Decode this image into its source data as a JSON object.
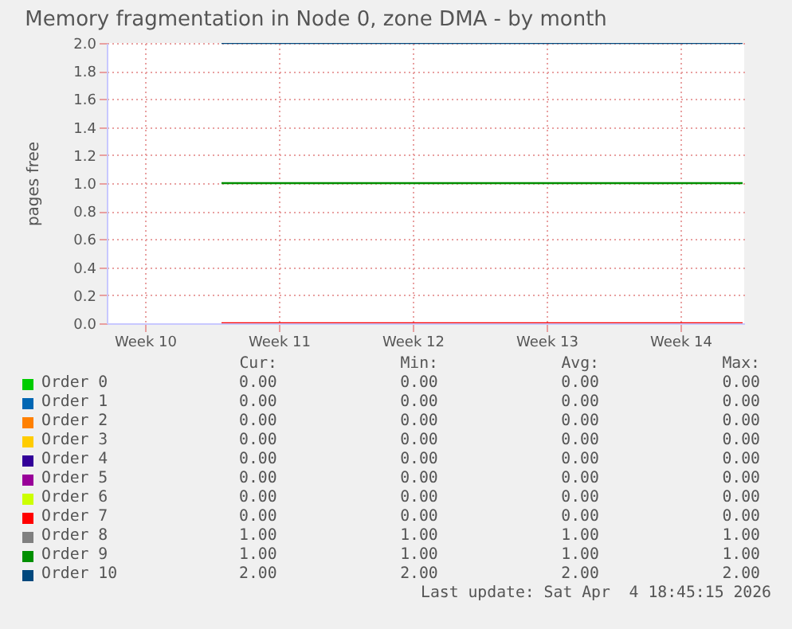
{
  "chart_data": {
    "type": "line",
    "title": "Memory fragmentation in Node 0, zone DMA - by month",
    "ylabel": "pages free",
    "xlim": [
      "2026-03-03T12:00",
      "2026-04-05T20:00"
    ],
    "xticks": [
      {
        "value": "2026-03-05T12:00",
        "label": "Week 10"
      },
      {
        "value": "2026-03-12T12:00",
        "label": "Week 11"
      },
      {
        "value": "2026-03-19T12:00",
        "label": "Week 12"
      },
      {
        "value": "2026-03-26T12:00",
        "label": "Week 13"
      },
      {
        "value": "2026-04-02T12:00",
        "label": "Week 14"
      }
    ],
    "ylim": [
      0,
      2
    ],
    "yticks": [
      {
        "value": 0,
        "label": "0.0"
      },
      {
        "value": 0.2,
        "label": "0.2"
      },
      {
        "value": 0.4,
        "label": "0.4"
      },
      {
        "value": 0.6,
        "label": "0.6"
      },
      {
        "value": 0.8,
        "label": "0.8"
      },
      {
        "value": 1,
        "label": "1.0"
      },
      {
        "value": 1.2,
        "label": "1.2"
      },
      {
        "value": 1.4,
        "label": "1.4"
      },
      {
        "value": 1.6,
        "label": "1.6"
      },
      {
        "value": 1.8,
        "label": "1.8"
      },
      {
        "value": 2,
        "label": "2.0"
      }
    ],
    "grid": true,
    "legend": "bottom",
    "marker": "none",
    "x": [
      "2026-03-09T12:00",
      "2026-04-05T18:00"
    ],
    "series": [
      {
        "name": "Order 0",
        "color": "#00cc00",
        "values": [
          null,
          null
        ]
      },
      {
        "name": "Order 1",
        "color": "#0066b3",
        "values": [
          null,
          null
        ]
      },
      {
        "name": "Order 2",
        "color": "#ff8000",
        "values": [
          null,
          null
        ]
      },
      {
        "name": "Order 3",
        "color": "#ffcc00",
        "values": [
          null,
          null
        ]
      },
      {
        "name": "Order 4",
        "color": "#330099",
        "values": [
          null,
          null
        ]
      },
      {
        "name": "Order 5",
        "color": "#990099",
        "values": [
          null,
          null
        ]
      },
      {
        "name": "Order 6",
        "color": "#ccff00",
        "values": [
          null,
          null
        ]
      },
      {
        "name": "Order 7",
        "color": "#ff0000",
        "values": [
          0,
          0
        ]
      },
      {
        "name": "Order 8",
        "color": "#808080",
        "values": [
          null,
          null
        ]
      },
      {
        "name": "Order 9",
        "color": "#008f00",
        "values": [
          1,
          1
        ]
      },
      {
        "name": "Order 10",
        "color": "#00487d",
        "values": [
          2,
          2
        ]
      }
    ],
    "annotations": [
      "Cur:",
      "Min:",
      "Avg:",
      "Max:",
      "0.00             0.00             0.00             0.00",
      "0.00             0.00             0.00             0.00",
      "0.00             0.00             0.00             0.00",
      "0.00             0.00             0.00             0.00",
      "0.00             0.00             0.00             0.00",
      "0.00             0.00             0.00             0.00",
      "0.00             0.00             0.00             0.00",
      "0.00             0.00             0.00             0.00",
      "1.00             1.00             1.00             1.00",
      "1.00             1.00             1.00             1.00",
      "2.00             2.00             2.00             2.00",
      "Last update: Sat Apr  4 18:45:15 2026"
    ]
  }
}
